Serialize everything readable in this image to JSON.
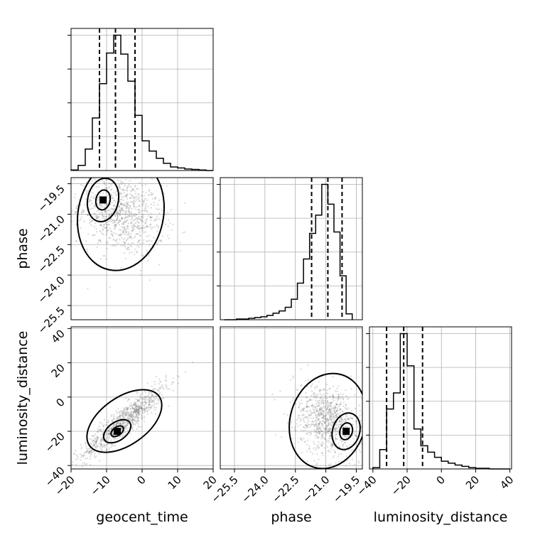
{
  "chart_data": {
    "type": "scatter",
    "parameters": [
      "geocent_time",
      "phase",
      "luminosity_distance"
    ],
    "labels": {
      "geocent_time": "geocent_time",
      "phase": "phase",
      "luminosity_distance": "luminosity_distance"
    },
    "ticks": {
      "geocent_time": [
        "−20",
        "−10",
        "0",
        "10",
        "20"
      ],
      "phase": [
        "−25.5",
        "−24.0",
        "−22.5",
        "−21.0",
        "−19.5"
      ],
      "luminosity_distance": [
        "−40",
        "−20",
        "0",
        "20",
        "40"
      ]
    },
    "ranges": {
      "geocent_time": [
        -20,
        20
      ],
      "phase": [
        -26.2,
        -19.2
      ],
      "luminosity_distance": [
        -42,
        41
      ]
    },
    "histograms": {
      "geocent_time": {
        "bins": [
          -20,
          -18,
          -16,
          -14,
          -12,
          -10,
          -8,
          -6,
          -4,
          -2,
          0,
          2,
          4,
          6,
          8,
          10,
          12,
          14,
          16,
          18,
          20
        ],
        "counts": [
          1,
          10,
          42,
          103,
          170,
          230,
          265,
          228,
          175,
          108,
          58,
          38,
          24,
          14,
          7,
          5,
          3,
          2,
          1,
          0
        ],
        "quantiles": [
          -12,
          -7.5,
          -2
        ]
      },
      "phase": {
        "bins": [
          -26.0,
          -25.7,
          -25.4,
          -25.1,
          -24.8,
          -24.5,
          -24.2,
          -23.9,
          -23.6,
          -23.3,
          -23.0,
          -22.7,
          -22.4,
          -22.1,
          -21.8,
          -21.5,
          -21.2,
          -20.9,
          -20.6,
          -20.3,
          -20.0,
          -19.7
        ],
        "counts": [
          0,
          0,
          1,
          1,
          2,
          3,
          4,
          6,
          9,
          12,
          17,
          28,
          50,
          83,
          118,
          143,
          185,
          158,
          120,
          60,
          8
        ],
        "quantiles": [
          -21.7,
          -20.9,
          -20.2
        ]
      },
      "luminosity_distance": {
        "bins": [
          -40,
          -36,
          -32,
          -28,
          -24,
          -20,
          -16,
          -12,
          -8,
          -4,
          0,
          4,
          8,
          12,
          16,
          20,
          24,
          28,
          32,
          36,
          40
        ],
        "counts": [
          2,
          30,
          93,
          118,
          210,
          160,
          62,
          36,
          26,
          18,
          12,
          9,
          6,
          4,
          2,
          1,
          1,
          0,
          0,
          0
        ],
        "quantiles": [
          -32,
          -22,
          -11
        ]
      }
    },
    "pairs": [
      {
        "x": "geocent_time",
        "y": "phase",
        "mean": [
          -6,
          -21.0
        ],
        "std": [
          6,
          1.0
        ],
        "corr": -0.25,
        "density_peak": [
          -11,
          -20.3
        ]
      },
      {
        "x": "geocent_time",
        "y": "luminosity_distance",
        "mean": [
          -5,
          -14
        ],
        "std": [
          6,
          11
        ],
        "corr": 0.92,
        "density_peak": [
          -7,
          -20
        ]
      },
      {
        "x": "phase",
        "y": "luminosity_distance",
        "mean": [
          -20.9,
          -14
        ],
        "std": [
          0.85,
          11
        ],
        "corr": -0.3,
        "density_peak": [
          -20.0,
          -20
        ]
      }
    ],
    "grid": true,
    "legend": "none",
    "title": ""
  }
}
